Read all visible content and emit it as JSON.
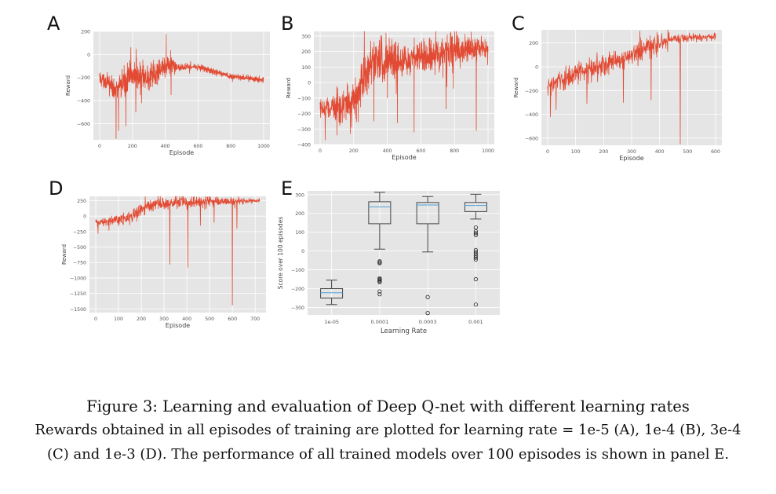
{
  "figure": {
    "caption_title": "Figure 3: Learning and evaluation of Deep Q-net with different learning rates",
    "caption_line1": "Rewards obtained in all episodes of training are plotted for learning rate = 1e-5 (A), 1e-4 (B), 3e-4",
    "caption_line2": "(C) and 1e-3 (D). The performance of all trained models over 100 episodes is shown in panel E."
  },
  "colors": {
    "line": "#e24a33",
    "plot_bg": "#e5e5e5",
    "grid": "#ffffff",
    "box": "#333333",
    "median": "#4c9fd6"
  },
  "chart_data": [
    {
      "panel": "A",
      "type": "line",
      "xlabel": "Episode",
      "ylabel": "Reward",
      "xlim": [
        0,
        1000
      ],
      "ylim": [
        -740,
        200
      ],
      "xticks": [
        0,
        200,
        400,
        600,
        800,
        1000
      ],
      "yticks": [
        200,
        0,
        -200,
        -400,
        -600
      ],
      "n_points": 1000,
      "trend": [
        [
          0,
          -200
        ],
        [
          100,
          -300
        ],
        [
          200,
          -180
        ],
        [
          300,
          -220
        ],
        [
          400,
          -90
        ],
        [
          500,
          -110
        ],
        [
          600,
          -110
        ],
        [
          700,
          -150
        ],
        [
          800,
          -190
        ],
        [
          1000,
          -220
        ]
      ],
      "spread": [
        [
          0,
          80
        ],
        [
          200,
          200
        ],
        [
          400,
          150
        ],
        [
          500,
          40
        ],
        [
          600,
          40
        ],
        [
          800,
          30
        ],
        [
          1000,
          40
        ]
      ],
      "spikes": [
        [
          100,
          -730
        ],
        [
          115,
          -660
        ],
        [
          160,
          -620
        ],
        [
          220,
          -500
        ],
        [
          255,
          -420
        ],
        [
          405,
          175
        ],
        [
          435,
          -350
        ],
        [
          190,
          60
        ]
      ]
    },
    {
      "panel": "B",
      "type": "line",
      "xlabel": "Episode",
      "ylabel": "Reward",
      "xlim": [
        0,
        1000
      ],
      "ylim": [
        -400,
        330
      ],
      "xticks": [
        0,
        200,
        400,
        600,
        800,
        1000
      ],
      "yticks": [
        300,
        200,
        100,
        0,
        -100,
        -200,
        -300,
        -400
      ],
      "n_points": 1000,
      "trend": [
        [
          0,
          -180
        ],
        [
          200,
          -120
        ],
        [
          300,
          130
        ],
        [
          500,
          130
        ],
        [
          600,
          170
        ],
        [
          800,
          200
        ],
        [
          1000,
          230
        ]
      ],
      "spread": [
        [
          0,
          90
        ],
        [
          200,
          200
        ],
        [
          400,
          200
        ],
        [
          600,
          150
        ],
        [
          800,
          160
        ],
        [
          1000,
          80
        ]
      ],
      "spikes": [
        [
          30,
          -370
        ],
        [
          100,
          -340
        ],
        [
          180,
          -330
        ],
        [
          320,
          -250
        ],
        [
          460,
          -260
        ],
        [
          560,
          -320
        ],
        [
          750,
          -170
        ],
        [
          930,
          -310
        ],
        [
          960,
          300
        ]
      ]
    },
    {
      "panel": "C",
      "type": "line",
      "xlabel": "Episode",
      "ylabel": "Reward",
      "xlim": [
        0,
        600
      ],
      "ylim": [
        -660,
        310
      ],
      "xticks": [
        0,
        100,
        200,
        300,
        400,
        500,
        600
      ],
      "yticks": [
        200,
        0,
        -200,
        -400,
        -600
      ],
      "n_points": 600,
      "trend": [
        [
          0,
          -170
        ],
        [
          100,
          -60
        ],
        [
          200,
          20
        ],
        [
          300,
          90
        ],
        [
          400,
          200
        ],
        [
          450,
          240
        ],
        [
          600,
          250
        ]
      ],
      "spread": [
        [
          0,
          110
        ],
        [
          200,
          150
        ],
        [
          400,
          120
        ],
        [
          450,
          60
        ],
        [
          600,
          40
        ]
      ],
      "spikes": [
        [
          10,
          -420
        ],
        [
          30,
          -360
        ],
        [
          140,
          -310
        ],
        [
          270,
          -300
        ],
        [
          370,
          -280
        ],
        [
          474,
          -650
        ],
        [
          330,
          300
        ],
        [
          520,
          280
        ]
      ]
    },
    {
      "panel": "D",
      "type": "line",
      "xlabel": "Episode",
      "ylabel": "Reward",
      "xlim": [
        0,
        720
      ],
      "ylim": [
        -1560,
        320
      ],
      "xticks": [
        0,
        100,
        200,
        300,
        400,
        500,
        600,
        700
      ],
      "yticks": [
        250,
        0,
        -250,
        -500,
        -750,
        -1000,
        -1250,
        -1500
      ],
      "n_points": 720,
      "trend": [
        [
          0,
          -110
        ],
        [
          150,
          -30
        ],
        [
          250,
          190
        ],
        [
          400,
          230
        ],
        [
          600,
          240
        ],
        [
          720,
          250
        ]
      ],
      "spread": [
        [
          0,
          80
        ],
        [
          200,
          180
        ],
        [
          300,
          140
        ],
        [
          500,
          120
        ],
        [
          720,
          40
        ]
      ],
      "spikes": [
        [
          10,
          -280
        ],
        [
          325,
          -780
        ],
        [
          405,
          -830
        ],
        [
          600,
          -1440
        ],
        [
          460,
          -150
        ],
        [
          520,
          -100
        ],
        [
          620,
          -200
        ]
      ]
    },
    {
      "panel": "E",
      "type": "box",
      "xlabel": "Learning Rate",
      "ylabel": "Score over 100 episodes",
      "ylim": [
        -340,
        320
      ],
      "yticks": [
        300,
        200,
        100,
        0,
        -100,
        -200,
        -300
      ],
      "categories": [
        "1e-05",
        "0.0001",
        "0.0003",
        "0.001"
      ],
      "boxes": [
        {
          "whisker_low": -285,
          "q1": -250,
          "median": -222,
          "q3": -200,
          "whisker_high": -155,
          "outliers": []
        },
        {
          "whisker_low": 10,
          "q1": 145,
          "median": 235,
          "q3": 262,
          "whisker_high": 312,
          "outliers": [
            -55,
            -60,
            -65,
            -145,
            -150,
            -155,
            -160,
            -165,
            -215,
            -230
          ]
        },
        {
          "whisker_low": -5,
          "q1": 145,
          "median": 245,
          "q3": 258,
          "whisker_high": 290,
          "outliers": [
            -245,
            -330
          ]
        },
        {
          "whisker_low": 170,
          "q1": 210,
          "median": 242,
          "q3": 258,
          "whisker_high": 302,
          "outliers": [
            125,
            105,
            95,
            85,
            5,
            -5,
            -15,
            -25,
            -35,
            -45,
            -150,
            -285
          ]
        }
      ]
    }
  ]
}
